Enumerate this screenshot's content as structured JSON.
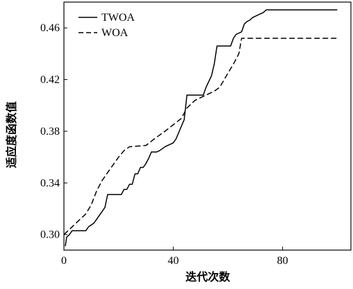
{
  "chart_data": {
    "type": "line",
    "title": "",
    "xlabel": "迭代次数",
    "ylabel": "适应度函数值",
    "xlim": [
      0,
      105
    ],
    "ylim": [
      0.288,
      0.48
    ],
    "x_ticks": [
      0,
      40,
      80
    ],
    "y_ticks": [
      0.3,
      0.34,
      0.38,
      0.42,
      0.46
    ],
    "x_tick_labels": [
      "0",
      "40",
      "80"
    ],
    "y_tick_labels": [
      "0.30",
      "0.34",
      "0.38",
      "0.42",
      "0.46"
    ],
    "grid": false,
    "legend_position": "top-left",
    "series": [
      {
        "name": "TWOA",
        "style": "solid",
        "color": "#000000",
        "points": [
          [
            0.5,
            0.291
          ],
          [
            1,
            0.298
          ],
          [
            2,
            0.3
          ],
          [
            3,
            0.303
          ],
          [
            8,
            0.303
          ],
          [
            9,
            0.306
          ],
          [
            11,
            0.309
          ],
          [
            12,
            0.312
          ],
          [
            14,
            0.318
          ],
          [
            15,
            0.321
          ],
          [
            16,
            0.331
          ],
          [
            21,
            0.331
          ],
          [
            22,
            0.335
          ],
          [
            23,
            0.335
          ],
          [
            24,
            0.339
          ],
          [
            25,
            0.339
          ],
          [
            26,
            0.347
          ],
          [
            27,
            0.347
          ],
          [
            28,
            0.352
          ],
          [
            29,
            0.352
          ],
          [
            30,
            0.355
          ],
          [
            31,
            0.359
          ],
          [
            32,
            0.364
          ],
          [
            34,
            0.364
          ],
          [
            35,
            0.365
          ],
          [
            37,
            0.368
          ],
          [
            40,
            0.371
          ],
          [
            41,
            0.374
          ],
          [
            42,
            0.379
          ],
          [
            43,
            0.384
          ],
          [
            44,
            0.389
          ],
          [
            45,
            0.408
          ],
          [
            51,
            0.408
          ],
          [
            52,
            0.414
          ],
          [
            54,
            0.423
          ],
          [
            55,
            0.432
          ],
          [
            56,
            0.446
          ],
          [
            61,
            0.446
          ],
          [
            62,
            0.452
          ],
          [
            63,
            0.455
          ],
          [
            65,
            0.457
          ],
          [
            66,
            0.463
          ],
          [
            67,
            0.465
          ],
          [
            68,
            0.466
          ],
          [
            69,
            0.468
          ],
          [
            71,
            0.47
          ],
          [
            73,
            0.472
          ],
          [
            74,
            0.474
          ],
          [
            100,
            0.474
          ]
        ]
      },
      {
        "name": "WOA",
        "style": "dashed",
        "color": "#000000",
        "points": [
          [
            0,
            0.3
          ],
          [
            4,
            0.308
          ],
          [
            8,
            0.316
          ],
          [
            10,
            0.323
          ],
          [
            12,
            0.334
          ],
          [
            14,
            0.342
          ],
          [
            16,
            0.348
          ],
          [
            18,
            0.354
          ],
          [
            20,
            0.36
          ],
          [
            22,
            0.365
          ],
          [
            24,
            0.368
          ],
          [
            30,
            0.369
          ],
          [
            33,
            0.374
          ],
          [
            37,
            0.38
          ],
          [
            40,
            0.385
          ],
          [
            43,
            0.39
          ],
          [
            45,
            0.398
          ],
          [
            48,
            0.404
          ],
          [
            51,
            0.407
          ],
          [
            55,
            0.411
          ],
          [
            57,
            0.414
          ],
          [
            60,
            0.425
          ],
          [
            62,
            0.432
          ],
          [
            64,
            0.44
          ],
          [
            65,
            0.452
          ],
          [
            100,
            0.452
          ]
        ]
      }
    ]
  }
}
